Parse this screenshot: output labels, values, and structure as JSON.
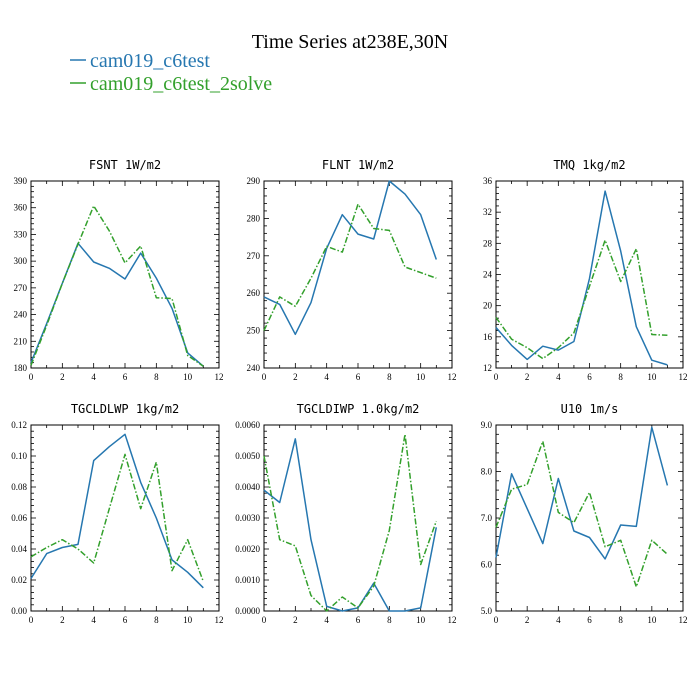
{
  "figure": {
    "title": "Time Series at238E,30N",
    "legend": [
      {
        "name": "cam019_c6test",
        "color": "#2677b0"
      },
      {
        "name": "cam019_c6test_2solve",
        "color": "#33a02c"
      }
    ]
  },
  "chart_data": [
    {
      "type": "line",
      "title": "FSNT   1W/m2",
      "x": [
        0,
        1,
        2,
        3,
        4,
        5,
        6,
        7,
        8,
        9,
        10,
        11
      ],
      "xlim": [
        0,
        12
      ],
      "xticks": [
        0,
        2,
        4,
        6,
        8,
        10,
        12
      ],
      "ylim": [
        180,
        390
      ],
      "yticks": [
        180,
        210,
        240,
        270,
        300,
        330,
        360,
        390
      ],
      "ytick_labels": [
        "180",
        "210",
        "240",
        "270",
        "300",
        "330",
        "360",
        "390"
      ],
      "series": [
        {
          "name": "cam019_c6test",
          "values": [
            186,
            230,
            275,
            320,
            299,
            292,
            280,
            309,
            281,
            247,
            197,
            182
          ]
        },
        {
          "name": "cam019_c6test_2solve",
          "values": [
            183,
            228,
            275,
            319,
            362,
            334,
            298,
            317,
            259,
            258,
            194,
            182
          ]
        }
      ]
    },
    {
      "type": "line",
      "title": "FLNT   1W/m2",
      "x": [
        0,
        1,
        2,
        3,
        4,
        5,
        6,
        7,
        8,
        9,
        10,
        11
      ],
      "xlim": [
        0,
        12
      ],
      "xticks": [
        0,
        2,
        4,
        6,
        8,
        10,
        12
      ],
      "ylim": [
        240,
        290
      ],
      "yticks": [
        240,
        250,
        260,
        270,
        280,
        290
      ],
      "ytick_labels": [
        "240",
        "250",
        "260",
        "270",
        "280",
        "290"
      ],
      "series": [
        {
          "name": "cam019_c6test",
          "values": [
            259,
            257,
            249,
            257.5,
            272,
            281,
            275.8,
            274.5,
            290,
            286.5,
            281,
            269
          ]
        },
        {
          "name": "cam019_c6test_2solve",
          "values": [
            250,
            259,
            256.5,
            264,
            272.5,
            271,
            283.8,
            277.3,
            276.8,
            267,
            265.5,
            264
          ]
        }
      ]
    },
    {
      "type": "line",
      "title": "TMQ   1kg/m2",
      "x": [
        0,
        1,
        2,
        3,
        4,
        5,
        6,
        7,
        8,
        9,
        10,
        11
      ],
      "xlim": [
        0,
        12
      ],
      "xticks": [
        0,
        2,
        4,
        6,
        8,
        10,
        12
      ],
      "ylim": [
        12,
        36
      ],
      "yticks": [
        12,
        16,
        20,
        24,
        28,
        32,
        36
      ],
      "ytick_labels": [
        "12",
        "16",
        "20",
        "24",
        "28",
        "32",
        "36"
      ],
      "series": [
        {
          "name": "cam019_c6test",
          "values": [
            17.2,
            14.9,
            13.1,
            14.8,
            14.3,
            15.4,
            23.5,
            34.7,
            27,
            17.3,
            13,
            12.4
          ]
        },
        {
          "name": "cam019_c6test_2solve",
          "values": [
            18.5,
            15.7,
            14.6,
            13.2,
            14.6,
            16.5,
            22.5,
            28.4,
            23.1,
            27.3,
            16.3,
            16.2
          ]
        }
      ]
    },
    {
      "type": "line",
      "title": "TGCLDLWP   1kg/m2",
      "x": [
        0,
        1,
        2,
        3,
        4,
        5,
        6,
        7,
        8,
        9,
        10,
        11
      ],
      "xlim": [
        0,
        12
      ],
      "xticks": [
        0,
        2,
        4,
        6,
        8,
        10,
        12
      ],
      "ylim": [
        0,
        0.12
      ],
      "yticks": [
        0,
        0.02,
        0.04,
        0.06,
        0.08,
        0.1,
        0.12
      ],
      "ytick_labels": [
        "0.00",
        "0.02",
        "0.04",
        "0.06",
        "0.08",
        "0.10",
        "0.12"
      ],
      "series": [
        {
          "name": "cam019_c6test",
          "values": [
            0.021,
            0.037,
            0.041,
            0.043,
            0.097,
            0.106,
            0.114,
            0.083,
            0.06,
            0.033,
            0.025,
            0.015
          ]
        },
        {
          "name": "cam019_c6test_2solve",
          "values": [
            0.035,
            0.041,
            0.046,
            0.04,
            0.031,
            0.066,
            0.101,
            0.066,
            0.096,
            0.026,
            0.046,
            0.019
          ]
        }
      ]
    },
    {
      "type": "line",
      "title": "TGCLDIWP   1.0kg/m2",
      "x": [
        0,
        1,
        2,
        3,
        4,
        5,
        6,
        7,
        8,
        9,
        10,
        11
      ],
      "xlim": [
        0,
        12
      ],
      "xticks": [
        0,
        2,
        4,
        6,
        8,
        10,
        12
      ],
      "ylim": [
        0,
        0.006
      ],
      "yticks": [
        0,
        0.001,
        0.002,
        0.003,
        0.004,
        0.005,
        0.006
      ],
      "ytick_labels": [
        "0.0000",
        "0.0010",
        "0.0020",
        "0.0030",
        "0.0040",
        "0.0050",
        "0.0060"
      ],
      "series": [
        {
          "name": "cam019_c6test",
          "values": [
            0.0039,
            0.0035,
            0.00555,
            0.0023,
            0.00015,
            0.0,
            0.0001,
            0.0009,
            0.0,
            0.0,
            0.0001,
            0.0027
          ]
        },
        {
          "name": "cam019_c6test_2solve",
          "values": [
            0.005,
            0.0023,
            0.0021,
            0.0005,
            0.0,
            0.00045,
            0.0001,
            0.0008,
            0.0026,
            0.0057,
            0.0015,
            0.0029
          ]
        }
      ]
    },
    {
      "type": "line",
      "title": "U10   1m/s",
      "x": [
        0,
        1,
        2,
        3,
        4,
        5,
        6,
        7,
        8,
        9,
        10,
        11
      ],
      "xlim": [
        0,
        12
      ],
      "xticks": [
        0,
        2,
        4,
        6,
        8,
        10,
        12
      ],
      "ylim": [
        5,
        9
      ],
      "yticks": [
        5,
        6,
        7,
        8,
        9
      ],
      "ytick_labels": [
        "5.0",
        "6.0",
        "7.0",
        "8.0",
        "9.0"
      ],
      "series": [
        {
          "name": "cam019_c6test",
          "values": [
            6.15,
            7.95,
            7.2,
            6.45,
            7.85,
            6.72,
            6.58,
            6.12,
            6.85,
            6.82,
            8.95,
            7.7
          ]
        },
        {
          "name": "cam019_c6test_2solve",
          "values": [
            6.8,
            7.62,
            7.72,
            8.65,
            7.12,
            6.9,
            7.55,
            6.38,
            6.52,
            5.52,
            6.52,
            6.22
          ]
        }
      ]
    }
  ]
}
